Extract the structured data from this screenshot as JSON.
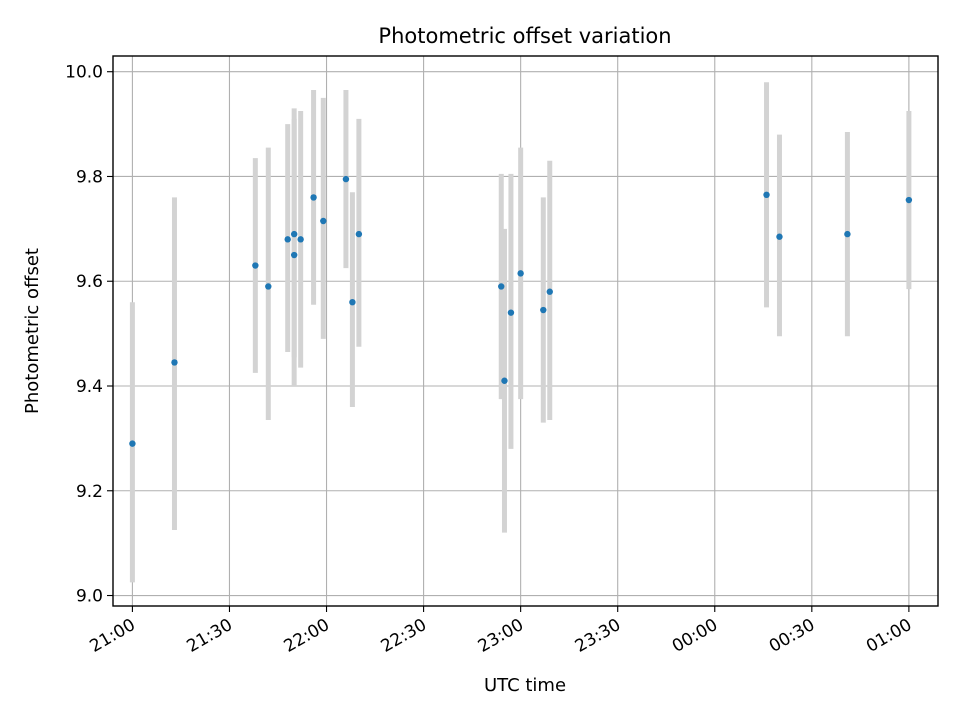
{
  "chart_data": {
    "type": "scatter",
    "title": "Photometric offset variation",
    "xlabel": "UTC time",
    "ylabel": "Photometric offset",
    "x_unit": "UTC time (HH:MM)",
    "xlim": [
      "20:54",
      "01:09"
    ],
    "ylim": [
      8.98,
      10.03
    ],
    "grid": true,
    "x_ticks": [
      "21:00",
      "21:30",
      "22:00",
      "22:30",
      "23:00",
      "23:30",
      "00:00",
      "00:30",
      "01:00"
    ],
    "y_ticks": [
      "9.0",
      "9.2",
      "9.4",
      "9.6",
      "9.8",
      "10.0"
    ],
    "point_color": "#1f77b4",
    "errorbar_color": "#d3d3d3",
    "points": [
      {
        "x": "21:00",
        "y": 9.29,
        "lo": 9.025,
        "hi": 9.56
      },
      {
        "x": "21:13",
        "y": 9.445,
        "lo": 9.125,
        "hi": 9.76
      },
      {
        "x": "21:38",
        "y": 9.63,
        "lo": 9.425,
        "hi": 9.835
      },
      {
        "x": "21:42",
        "y": 9.59,
        "lo": 9.335,
        "hi": 9.855
      },
      {
        "x": "21:48",
        "y": 9.68,
        "lo": 9.465,
        "hi": 9.9
      },
      {
        "x": "21:50",
        "y": 9.69,
        "lo": 9.455,
        "hi": 9.93
      },
      {
        "x": "21:50",
        "y": 9.65,
        "lo": 9.4,
        "hi": 9.91
      },
      {
        "x": "21:52",
        "y": 9.68,
        "lo": 9.435,
        "hi": 9.925
      },
      {
        "x": "21:56",
        "y": 9.76,
        "lo": 9.555,
        "hi": 9.965
      },
      {
        "x": "21:59",
        "y": 9.715,
        "lo": 9.49,
        "hi": 9.95
      },
      {
        "x": "22:06",
        "y": 9.795,
        "lo": 9.625,
        "hi": 9.965
      },
      {
        "x": "22:08",
        "y": 9.56,
        "lo": 9.36,
        "hi": 9.77
      },
      {
        "x": "22:10",
        "y": 9.69,
        "lo": 9.475,
        "hi": 9.91
      },
      {
        "x": "22:54",
        "y": 9.59,
        "lo": 9.375,
        "hi": 9.805
      },
      {
        "x": "22:55",
        "y": 9.41,
        "lo": 9.12,
        "hi": 9.7
      },
      {
        "x": "22:57",
        "y": 9.54,
        "lo": 9.28,
        "hi": 9.805
      },
      {
        "x": "23:00",
        "y": 9.615,
        "lo": 9.375,
        "hi": 9.855
      },
      {
        "x": "23:07",
        "y": 9.545,
        "lo": 9.33,
        "hi": 9.76
      },
      {
        "x": "23:09",
        "y": 9.58,
        "lo": 9.335,
        "hi": 9.83
      },
      {
        "x": "00:16",
        "y": 9.765,
        "lo": 9.55,
        "hi": 9.98
      },
      {
        "x": "00:20",
        "y": 9.685,
        "lo": 9.495,
        "hi": 9.88
      },
      {
        "x": "00:41",
        "y": 9.69,
        "lo": 9.495,
        "hi": 9.885
      },
      {
        "x": "01:00",
        "y": 9.755,
        "lo": 9.585,
        "hi": 9.925
      }
    ]
  }
}
